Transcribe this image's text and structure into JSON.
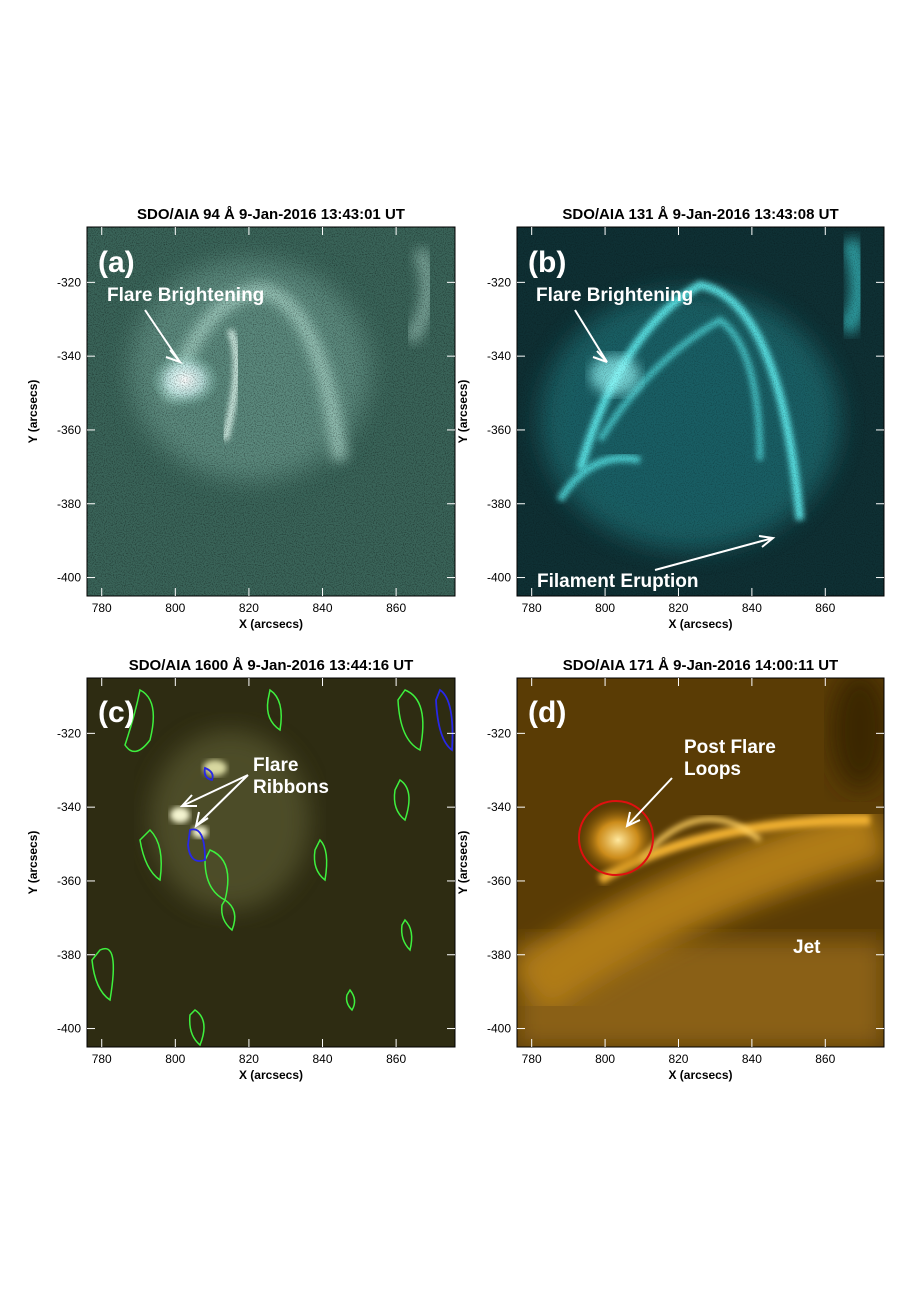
{
  "panels": [
    {
      "title": "SDO/AIA 94 Å 9-Jan-2016 13:43:01 UT",
      "label": "(a)",
      "x_label": "X (arcsecs)",
      "y_label": "Y (arcsecs)",
      "xlim": [
        776,
        876
      ],
      "ylim": [
        -405,
        -305
      ],
      "xticks": [
        780,
        800,
        820,
        840,
        860
      ],
      "yticks": [
        -400,
        -380,
        -360,
        -340,
        -320
      ],
      "annotations": [
        "Flare Brightening"
      ]
    },
    {
      "title": "SDO/AIA 131 Å 9-Jan-2016 13:43:08 UT",
      "label": "(b)",
      "x_label": "X (arcsecs)",
      "y_label": "Y (arcsecs)",
      "xlim": [
        776,
        876
      ],
      "ylim": [
        -405,
        -305
      ],
      "xticks": [
        780,
        800,
        820,
        840,
        860
      ],
      "yticks": [
        -400,
        -380,
        -360,
        -340,
        -320
      ],
      "annotations": [
        "Flare Brightening",
        "Filament Eruption"
      ]
    },
    {
      "title": "SDO/AIA 1600 Å 9-Jan-2016 13:44:16 UT",
      "label": "(c)",
      "x_label": "X (arcsecs)",
      "y_label": "Y (arcsecs)",
      "xlim": [
        776,
        876
      ],
      "ylim": [
        -405,
        -305
      ],
      "xticks": [
        780,
        800,
        820,
        840,
        860
      ],
      "yticks": [
        -400,
        -380,
        -360,
        -340,
        -320
      ],
      "annotations": [
        [
          "Flare",
          "Ribbons"
        ]
      ]
    },
    {
      "title": "SDO/AIA 171 Å 9-Jan-2016 14:00:11 UT",
      "label": "(d)",
      "x_label": "X (arcsecs)",
      "y_label": "Y (arcsecs)",
      "xlim": [
        776,
        876
      ],
      "ylim": [
        -405,
        -305
      ],
      "xticks": [
        780,
        800,
        820,
        840,
        860
      ],
      "yticks": [
        -400,
        -380,
        -360,
        -340,
        -320
      ],
      "annotations": [
        [
          "Post Flare",
          "Loops"
        ],
        "Jet"
      ]
    }
  ]
}
